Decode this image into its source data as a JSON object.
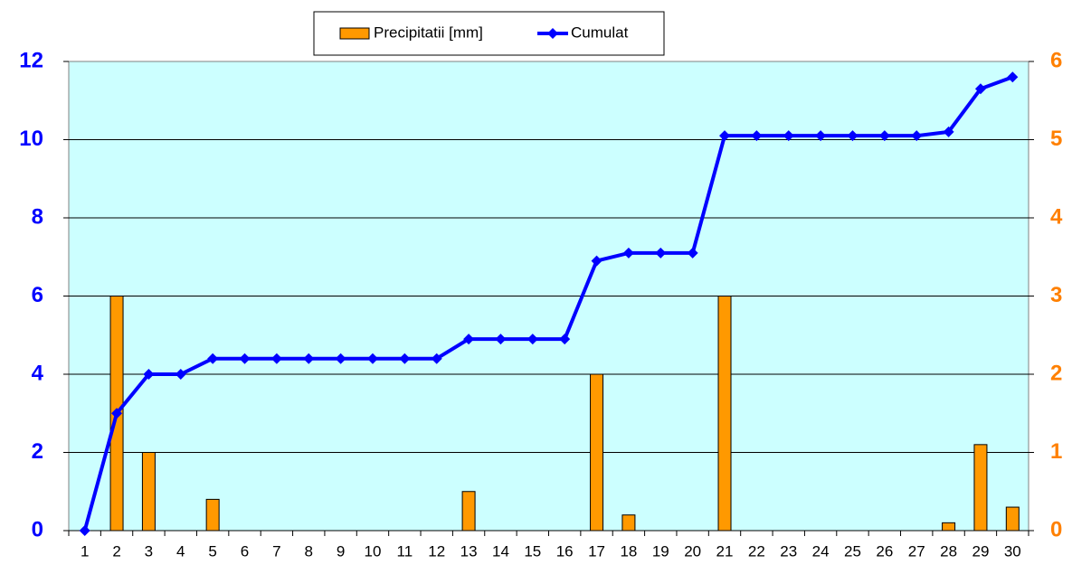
{
  "chart_data": {
    "type": "combo",
    "categories": [
      "1",
      "2",
      "3",
      "4",
      "5",
      "6",
      "7",
      "8",
      "9",
      "10",
      "11",
      "12",
      "13",
      "14",
      "15",
      "16",
      "17",
      "18",
      "19",
      "20",
      "21",
      "22",
      "23",
      "24",
      "25",
      "26",
      "27",
      "28",
      "29",
      "30"
    ],
    "series": [
      {
        "name": "Precipitatii [mm]",
        "type": "bar",
        "axis": "y2",
        "color": "#ff9900",
        "values": [
          0,
          3,
          1,
          0,
          0.4,
          0,
          0,
          0,
          0,
          0,
          0,
          0,
          0.5,
          0,
          0,
          0,
          2,
          0.2,
          0,
          0,
          3,
          0,
          0,
          0,
          0,
          0,
          0,
          0.1,
          1.1,
          0.3
        ]
      },
      {
        "name": "Cumulat",
        "type": "line",
        "color": "#0000ff",
        "values": [
          0,
          3,
          4,
          4,
          4.4,
          4.4,
          4.4,
          4.4,
          4.4,
          4.4,
          4.4,
          4.4,
          4.9,
          4.9,
          4.9,
          4.9,
          6.9,
          7.1,
          7.1,
          7.1,
          10.1,
          10.1,
          10.1,
          10.1,
          10.1,
          10.1,
          10.1,
          10.2,
          11.3,
          11.6
        ]
      }
    ],
    "ylim": [
      0,
      12
    ],
    "yticks": [
      0,
      2,
      4,
      6,
      8,
      10,
      12
    ],
    "y2lim": [
      0,
      6
    ],
    "y2ticks": [
      0,
      1,
      2,
      3,
      4,
      5,
      6
    ],
    "grid": true,
    "legend": "top"
  }
}
